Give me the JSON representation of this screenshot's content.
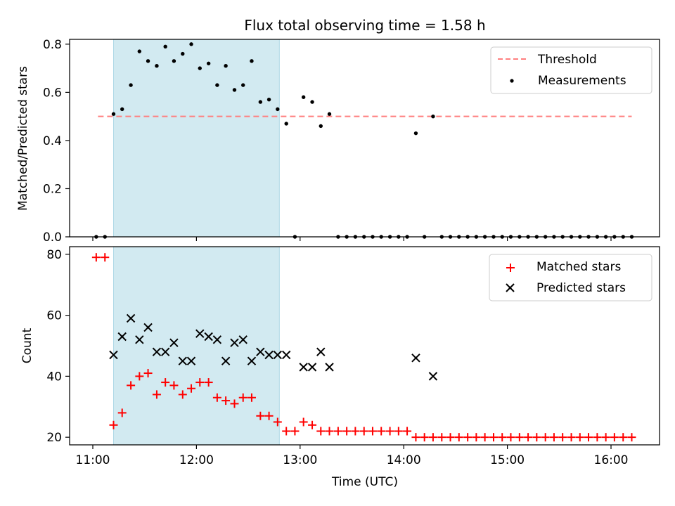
{
  "chart_data": {
    "title": "Flux total observing time = 1.58 h",
    "xlabel": "Time (UTC)",
    "x_ticks": [
      "11:00",
      "12:00",
      "13:00",
      "14:00",
      "15:00",
      "16:00"
    ],
    "x_unit": "hours UTC",
    "highlight_span": {
      "start": 11.2,
      "end": 12.8,
      "color": "#add8e6"
    },
    "panels": [
      {
        "type": "scatter",
        "ylabel": "Matched/Predicted stars",
        "ylim": [
          0,
          0.82
        ],
        "y_ticks": [
          "0.0",
          "0.2",
          "0.4",
          "0.6",
          "0.8"
        ],
        "legend_position": "upper right",
        "threshold": {
          "name": "Threshold",
          "value": 0.5,
          "x_range": [
            11.05,
            16.2
          ],
          "color": "#ff7f7f",
          "style": "dashed"
        },
        "series": [
          {
            "name": "Measurements",
            "marker": "dot",
            "color": "#000000",
            "x": [
              11.033,
              11.117,
              11.2,
              11.283,
              11.367,
              11.45,
              11.533,
              11.617,
              11.7,
              11.783,
              11.867,
              11.95,
              12.033,
              12.117,
              12.2,
              12.283,
              12.367,
              12.45,
              12.533,
              12.617,
              12.7,
              12.783,
              12.867,
              12.95,
              13.033,
              13.117,
              13.2,
              13.283,
              13.367,
              13.45,
              13.533,
              13.617,
              13.7,
              13.783,
              13.867,
              13.95,
              14.033,
              14.117,
              14.2,
              14.283,
              14.367,
              14.45,
              14.533,
              14.617,
              14.7,
              14.783,
              14.867,
              14.95,
              15.033,
              15.117,
              15.2,
              15.283,
              15.367,
              15.45,
              15.533,
              15.617,
              15.7,
              15.783,
              15.867,
              15.95,
              16.033,
              16.117,
              16.2
            ],
            "y": [
              0,
              0,
              0.51,
              0.53,
              0.63,
              0.77,
              0.73,
              0.71,
              0.79,
              0.73,
              0.76,
              0.8,
              0.7,
              0.72,
              0.63,
              0.71,
              0.61,
              0.63,
              0.73,
              0.56,
              0.57,
              0.53,
              0.47,
              0,
              0.58,
              0.56,
              0.46,
              0.51,
              0,
              0,
              0,
              0,
              0,
              0,
              0,
              0,
              0,
              0.43,
              0,
              0.5,
              0,
              0,
              0,
              0,
              0,
              0,
              0,
              0,
              0,
              0,
              0,
              0,
              0,
              0,
              0,
              0,
              0,
              0,
              0,
              0,
              0,
              0,
              0
            ]
          }
        ]
      },
      {
        "type": "scatter",
        "ylabel": "Count",
        "ylim": [
          17.5,
          82.5
        ],
        "y_ticks": [
          "20",
          "40",
          "60",
          "80"
        ],
        "legend_position": "upper right",
        "series": [
          {
            "name": "Matched stars",
            "marker": "plus",
            "color": "#ff0000",
            "x": [
              11.033,
              11.117,
              11.2,
              11.283,
              11.367,
              11.45,
              11.533,
              11.617,
              11.7,
              11.783,
              11.867,
              11.95,
              12.033,
              12.117,
              12.2,
              12.283,
              12.367,
              12.45,
              12.533,
              12.617,
              12.7,
              12.783,
              12.867,
              12.95,
              13.033,
              13.117,
              13.2,
              13.283,
              13.367,
              13.45,
              13.533,
              13.617,
              13.7,
              13.783,
              13.867,
              13.95,
              14.033,
              14.117,
              14.2,
              14.283,
              14.367,
              14.45,
              14.533,
              14.617,
              14.7,
              14.783,
              14.867,
              14.95,
              15.033,
              15.117,
              15.2,
              15.283,
              15.367,
              15.45,
              15.533,
              15.617,
              15.7,
              15.783,
              15.867,
              15.95,
              16.033,
              16.117,
              16.2
            ],
            "y": [
              79,
              79,
              24,
              28,
              37,
              40,
              41,
              34,
              38,
              37,
              34,
              36,
              38,
              38,
              33,
              32,
              31,
              33,
              33,
              27,
              27,
              25,
              22,
              22,
              25,
              24,
              22,
              22,
              22,
              22,
              22,
              22,
              22,
              22,
              22,
              22,
              22,
              20,
              20,
              20,
              20,
              20,
              20,
              20,
              20,
              20,
              20,
              20,
              20,
              20,
              20,
              20,
              20,
              20,
              20,
              20,
              20,
              20,
              20,
              20,
              20,
              20,
              20
            ]
          },
          {
            "name": "Predicted stars",
            "marker": "x",
            "color": "#000000",
            "x": [
              11.2,
              11.283,
              11.367,
              11.45,
              11.533,
              11.617,
              11.7,
              11.783,
              11.867,
              11.95,
              12.033,
              12.117,
              12.2,
              12.283,
              12.367,
              12.45,
              12.533,
              12.617,
              12.7,
              12.783,
              12.867,
              13.033,
              13.117,
              13.2,
              13.283,
              14.117,
              14.283
            ],
            "y": [
              47,
              53,
              59,
              52,
              56,
              48,
              48,
              51,
              45,
              45,
              54,
              53,
              52,
              45,
              51,
              52,
              45,
              48,
              47,
              47,
              47,
              43,
              43,
              48,
              43,
              46,
              40
            ]
          }
        ]
      }
    ]
  }
}
